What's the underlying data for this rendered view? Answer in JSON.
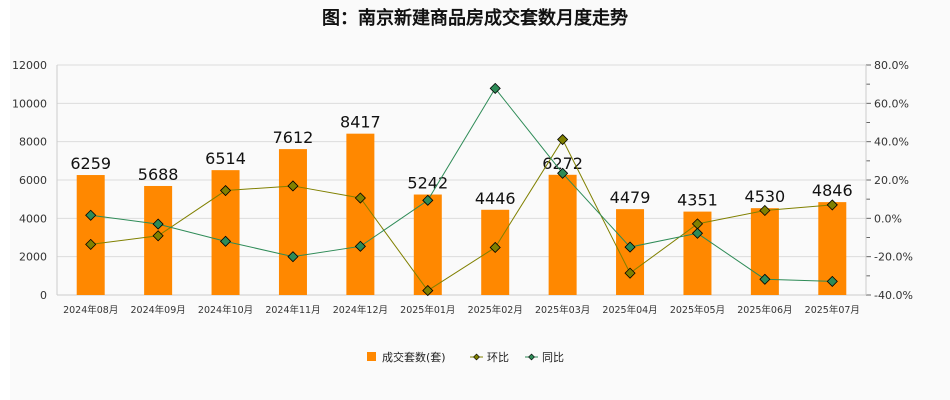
{
  "chart_data": {
    "type": "bar",
    "title": "图：南京新建商品房成交套数月度走势",
    "categories": [
      "2024年08月",
      "2024年09月",
      "2024年10月",
      "2024年11月",
      "2024年12月",
      "2025年01月",
      "2025年02月",
      "2025年03月",
      "2025年04月",
      "2025年05月",
      "2025年06月",
      "2025年07月"
    ],
    "series": [
      {
        "name": "成交套数(套)",
        "type": "bar",
        "axis": "left",
        "color": "#ff8800",
        "values": [
          6259,
          5688,
          6514,
          7612,
          8417,
          5242,
          4446,
          6272,
          4479,
          4351,
          4530,
          4846
        ]
      },
      {
        "name": "环比",
        "type": "line",
        "axis": "right",
        "color": "#808000",
        "values": [
          -13.6,
          -9.1,
          14.5,
          16.9,
          10.6,
          -37.7,
          -15.2,
          41.1,
          -28.6,
          -2.9,
          4.1,
          7.0
        ]
      },
      {
        "name": "同比",
        "type": "line",
        "axis": "right",
        "color": "#2e8b57",
        "values": [
          1.6,
          -3.0,
          -12.0,
          -20.0,
          -14.6,
          9.4,
          67.8,
          23.5,
          -15.0,
          -7.8,
          -31.8,
          -32.9
        ]
      }
    ],
    "ylim": [
      0,
      12000
    ],
    "yticks": [
      "0",
      "2000",
      "4000",
      "6000",
      "8000",
      "10000",
      "12000"
    ],
    "y2lim": [
      -40,
      80
    ],
    "y2ticks": [
      "-40.0%",
      "-20.0%",
      "0.0%",
      "20.0%",
      "40.0%",
      "60.0%",
      "80.0%"
    ],
    "grid": true,
    "legend": "bottom-center"
  }
}
